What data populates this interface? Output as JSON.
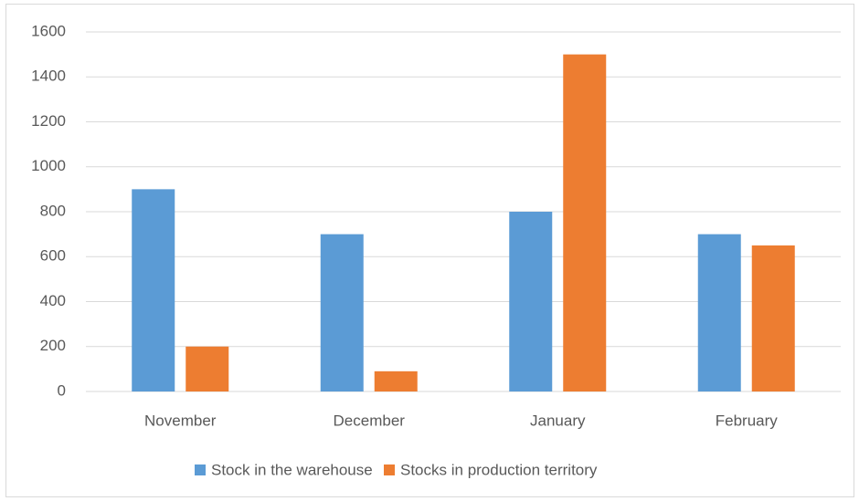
{
  "chart_data": {
    "type": "bar",
    "categories": [
      "November",
      "December",
      "January",
      "February"
    ],
    "series": [
      {
        "name": "Stock in the warehouse",
        "color": "#5b9bd5",
        "values": [
          900,
          700,
          800,
          700
        ]
      },
      {
        "name": "Stocks in production territory",
        "color": "#ed7d31",
        "values": [
          200,
          90,
          1500,
          650
        ]
      }
    ],
    "ylim": [
      0,
      1600
    ],
    "yticks": [
      0,
      200,
      400,
      600,
      800,
      1000,
      1200,
      1400,
      1600
    ],
    "grid": true,
    "legend": "bottom"
  }
}
